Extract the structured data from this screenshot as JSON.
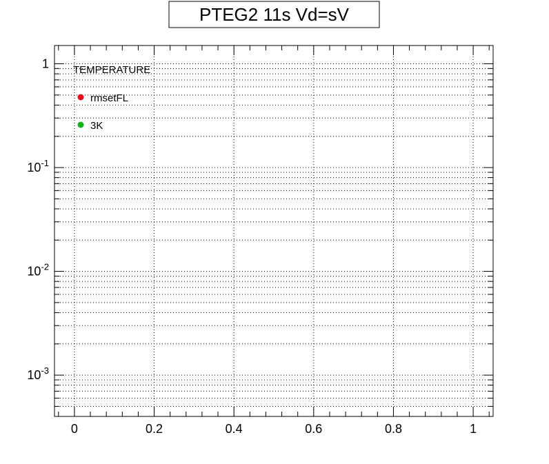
{
  "chart_data": {
    "type": "scatter",
    "title": "PTEG2 11s Vd=sV",
    "xlabel": "",
    "ylabel": "",
    "xlim": [
      -0.05,
      1.05
    ],
    "ylim": [
      0.0004,
      1.5
    ],
    "y_scale": "log",
    "grid": true,
    "x_ticks": [
      0,
      0.2,
      0.4,
      0.6,
      0.8,
      1
    ],
    "x_tick_labels": [
      "0",
      "0.2",
      "0.4",
      "0.6",
      "0.8",
      "1"
    ],
    "y_ticks": [
      {
        "value": 1,
        "base": "1",
        "exp": ""
      },
      {
        "value": 0.1,
        "base": "10",
        "exp": "-1"
      },
      {
        "value": 0.01,
        "base": "10",
        "exp": "-2"
      },
      {
        "value": 0.001,
        "base": "10",
        "exp": "-3"
      }
    ],
    "legend": {
      "placement": "top-left",
      "header": "TEMPERATURE",
      "entries": [
        {
          "label": "rmsetFL",
          "color": "#e8101a"
        },
        {
          "label": "3K",
          "color": "#10b41a"
        }
      ]
    },
    "series": []
  }
}
